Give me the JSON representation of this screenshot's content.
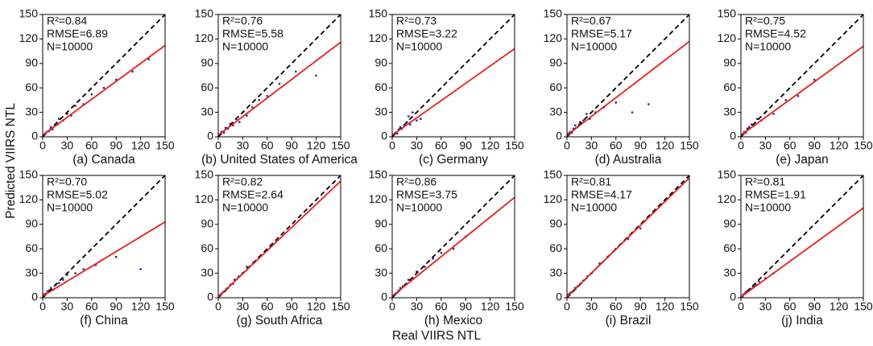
{
  "ylabel": "Predicted VIIRS NTL",
  "xlabel": "Real VIIRS NTL",
  "chart_data": [
    {
      "type": "scatter",
      "title": "(a) Canada",
      "annotations": [
        "R²=0.84",
        "RMSE=6.89",
        "N=10000"
      ],
      "xlim": [
        0,
        150
      ],
      "ylim": [
        0,
        150
      ],
      "xticks": [
        0,
        30,
        60,
        90,
        120,
        150
      ],
      "yticks": [
        0,
        30,
        60,
        90,
        120,
        150
      ],
      "series": [
        {
          "type": "scatter",
          "color": "#3a3a96",
          "x": [
            3,
            5,
            8,
            10,
            12,
            15,
            18,
            20,
            25,
            30,
            35,
            40,
            50,
            60,
            75,
            90,
            110,
            130
          ],
          "values": [
            4,
            6,
            7,
            12,
            9,
            14,
            15,
            22,
            20,
            28,
            26,
            38,
            40,
            52,
            60,
            70,
            80,
            95
          ]
        },
        {
          "type": "line",
          "color": "#000000",
          "dashed": true,
          "x": [
            0,
            150
          ],
          "values": [
            0,
            150
          ]
        },
        {
          "type": "line",
          "color": "#e8201c",
          "x": [
            0,
            150
          ],
          "values": [
            2,
            112
          ]
        }
      ]
    },
    {
      "type": "scatter",
      "title": "(b) United States of America",
      "annotations": [
        "R²=0.76",
        "RMSE=5.58",
        "N=10000"
      ],
      "xlim": [
        0,
        150
      ],
      "ylim": [
        0,
        150
      ],
      "xticks": [
        0,
        30,
        60,
        90,
        120,
        150
      ],
      "yticks": [
        0,
        30,
        60,
        90,
        120,
        150
      ],
      "series": [
        {
          "type": "scatter",
          "color": "#3a3a96",
          "x": [
            2,
            4,
            7,
            9,
            12,
            15,
            18,
            22,
            26,
            30,
            35,
            42,
            50,
            60,
            75,
            95,
            120
          ],
          "values": [
            3,
            6,
            5,
            11,
            10,
            16,
            14,
            22,
            18,
            30,
            26,
            36,
            45,
            50,
            65,
            80,
            75
          ]
        },
        {
          "type": "line",
          "color": "#000000",
          "dashed": true,
          "x": [
            0,
            150
          ],
          "values": [
            0,
            150
          ]
        },
        {
          "type": "line",
          "color": "#e8201c",
          "x": [
            0,
            150
          ],
          "values": [
            2,
            116
          ]
        }
      ]
    },
    {
      "type": "scatter",
      "title": "(c) Germany",
      "annotations": [
        "R²=0.73",
        "RMSE=3.22",
        "N=10000"
      ],
      "xlim": [
        0,
        150
      ],
      "ylim": [
        0,
        150
      ],
      "xticks": [
        0,
        30,
        60,
        90,
        120,
        150
      ],
      "yticks": [
        0,
        30,
        60,
        90,
        120,
        150
      ],
      "series": [
        {
          "type": "scatter",
          "color": "#3a3a96",
          "x": [
            2,
            4,
            6,
            8,
            10,
            12,
            15,
            18,
            20,
            22,
            25,
            30,
            35
          ],
          "values": [
            3,
            5,
            4,
            9,
            12,
            10,
            14,
            18,
            25,
            15,
            30,
            20,
            22
          ]
        },
        {
          "type": "line",
          "color": "#000000",
          "dashed": true,
          "x": [
            0,
            150
          ],
          "values": [
            0,
            150
          ]
        },
        {
          "type": "line",
          "color": "#e8201c",
          "x": [
            0,
            150
          ],
          "values": [
            2,
            108
          ]
        }
      ]
    },
    {
      "type": "scatter",
      "title": "(d) Australia",
      "annotations": [
        "R²=0.67",
        "RMSE=5.17",
        "N=10000"
      ],
      "xlim": [
        0,
        150
      ],
      "ylim": [
        0,
        150
      ],
      "xticks": [
        0,
        30,
        60,
        90,
        120,
        150
      ],
      "yticks": [
        0,
        30,
        60,
        90,
        120,
        150
      ],
      "series": [
        {
          "type": "scatter",
          "color": "#3a3a96",
          "x": [
            2,
            4,
            6,
            8,
            10,
            13,
            16,
            20,
            24,
            28,
            35,
            45,
            60,
            80,
            100
          ],
          "values": [
            4,
            6,
            5,
            10,
            14,
            12,
            18,
            20,
            28,
            22,
            30,
            36,
            42,
            30,
            40
          ]
        },
        {
          "type": "line",
          "color": "#000000",
          "dashed": true,
          "x": [
            0,
            150
          ],
          "values": [
            0,
            150
          ]
        },
        {
          "type": "line",
          "color": "#e8201c",
          "x": [
            0,
            150
          ],
          "values": [
            2,
            117
          ]
        }
      ]
    },
    {
      "type": "scatter",
      "title": "(e) Japan",
      "annotations": [
        "R²=0.75",
        "RMSE=4.52",
        "N=10000"
      ],
      "xlim": [
        0,
        150
      ],
      "ylim": [
        0,
        150
      ],
      "xticks": [
        0,
        30,
        60,
        90,
        120,
        150
      ],
      "yticks": [
        0,
        30,
        60,
        90,
        120,
        150
      ],
      "series": [
        {
          "type": "scatter",
          "color": "#3a3a96",
          "x": [
            2,
            4,
            6,
            8,
            10,
            13,
            16,
            20,
            25,
            30,
            40,
            55,
            70,
            90
          ],
          "values": [
            3,
            6,
            5,
            10,
            12,
            15,
            14,
            22,
            20,
            30,
            28,
            45,
            50,
            70
          ]
        },
        {
          "type": "line",
          "color": "#000000",
          "dashed": true,
          "x": [
            0,
            150
          ],
          "values": [
            0,
            150
          ]
        },
        {
          "type": "line",
          "color": "#e8201c",
          "x": [
            0,
            150
          ],
          "values": [
            2,
            111
          ]
        }
      ]
    },
    {
      "type": "scatter",
      "title": "(f) China",
      "annotations": [
        "R²=0.70",
        "RMSE=5.02",
        "N=10000"
      ],
      "xlim": [
        0,
        150
      ],
      "ylim": [
        0,
        150
      ],
      "xticks": [
        0,
        30,
        60,
        90,
        120,
        150
      ],
      "yticks": [
        0,
        30,
        60,
        90,
        120,
        150
      ],
      "series": [
        {
          "type": "scatter",
          "color": "#3a3a96",
          "x": [
            2,
            4,
            6,
            8,
            10,
            13,
            16,
            20,
            25,
            30,
            40,
            50,
            65,
            90,
            120
          ],
          "values": [
            4,
            5,
            8,
            9,
            12,
            10,
            16,
            18,
            22,
            28,
            30,
            35,
            40,
            50,
            35
          ]
        },
        {
          "type": "line",
          "color": "#000000",
          "dashed": true,
          "x": [
            0,
            150
          ],
          "values": [
            0,
            150
          ]
        },
        {
          "type": "line",
          "color": "#e8201c",
          "x": [
            0,
            150
          ],
          "values": [
            2,
            93
          ]
        }
      ]
    },
    {
      "type": "scatter",
      "title": "(g) South Africa",
      "annotations": [
        "R²=0.82",
        "RMSE=2.64",
        "N=10000"
      ],
      "xlim": [
        0,
        150
      ],
      "ylim": [
        0,
        150
      ],
      "xticks": [
        0,
        30,
        60,
        90,
        120,
        150
      ],
      "yticks": [
        0,
        30,
        60,
        90,
        120,
        150
      ],
      "series": [
        {
          "type": "scatter",
          "color": "#3a3a96",
          "x": [
            2,
            4,
            6,
            8,
            10,
            12,
            15,
            18,
            20,
            25,
            30,
            35,
            45
          ],
          "values": [
            3,
            5,
            7,
            8,
            11,
            12,
            16,
            17,
            22,
            26,
            30,
            38,
            44
          ]
        },
        {
          "type": "line",
          "color": "#000000",
          "dashed": true,
          "x": [
            0,
            150
          ],
          "values": [
            0,
            150
          ]
        },
        {
          "type": "line",
          "color": "#e8201c",
          "x": [
            0,
            150
          ],
          "values": [
            1,
            143
          ]
        }
      ]
    },
    {
      "type": "scatter",
      "title": "(h) Mexico",
      "annotations": [
        "R²=0.86",
        "RMSE=3.75",
        "N=10000"
      ],
      "xlim": [
        0,
        150
      ],
      "ylim": [
        0,
        150
      ],
      "xticks": [
        0,
        30,
        60,
        90,
        120,
        150
      ],
      "yticks": [
        0,
        30,
        60,
        90,
        120,
        150
      ],
      "series": [
        {
          "type": "scatter",
          "color": "#3a3a96",
          "x": [
            2,
            4,
            6,
            8,
            10,
            13,
            16,
            20,
            25,
            30,
            40,
            50,
            60,
            75,
            90
          ],
          "values": [
            3,
            5,
            6,
            9,
            12,
            14,
            16,
            22,
            24,
            32,
            38,
            48,
            55,
            60,
            75
          ]
        },
        {
          "type": "line",
          "color": "#000000",
          "dashed": true,
          "x": [
            0,
            150
          ],
          "values": [
            0,
            150
          ]
        },
        {
          "type": "line",
          "color": "#e8201c",
          "x": [
            0,
            150
          ],
          "values": [
            2,
            123
          ]
        }
      ]
    },
    {
      "type": "scatter",
      "title": "(i) Brazil",
      "annotations": [
        "R²=0.81",
        "RMSE=4.17",
        "N=10000"
      ],
      "xlim": [
        0,
        150
      ],
      "ylim": [
        0,
        150
      ],
      "xticks": [
        0,
        30,
        60,
        90,
        120,
        150
      ],
      "yticks": [
        0,
        30,
        60,
        90,
        120,
        150
      ],
      "series": [
        {
          "type": "scatter",
          "color": "#3a3a96",
          "x": [
            2,
            4,
            6,
            8,
            10,
            13,
            16,
            20,
            25,
            30,
            40,
            50,
            60,
            75,
            90
          ],
          "values": [
            4,
            6,
            7,
            9,
            12,
            14,
            17,
            21,
            26,
            30,
            42,
            50,
            60,
            72,
            85
          ]
        },
        {
          "type": "line",
          "color": "#000000",
          "dashed": true,
          "x": [
            0,
            150
          ],
          "values": [
            0,
            150
          ]
        },
        {
          "type": "line",
          "color": "#e8201c",
          "x": [
            0,
            150
          ],
          "values": [
            1,
            147
          ]
        }
      ]
    },
    {
      "type": "scatter",
      "title": "(j) India",
      "annotations": [
        "R²=0.81",
        "RMSE=1.91",
        "N=10000"
      ],
      "xlim": [
        0,
        150
      ],
      "ylim": [
        0,
        150
      ],
      "xticks": [
        0,
        30,
        60,
        90,
        120,
        150
      ],
      "yticks": [
        0,
        30,
        60,
        90,
        120,
        150
      ],
      "series": [
        {
          "type": "scatter",
          "color": "#3a3a96",
          "x": [
            2,
            3,
            5,
            6,
            8,
            10,
            12,
            15,
            18,
            22,
            30,
            40
          ],
          "values": [
            2,
            4,
            5,
            7,
            8,
            10,
            11,
            14,
            16,
            20,
            24,
            30
          ]
        },
        {
          "type": "line",
          "color": "#000000",
          "dashed": true,
          "x": [
            0,
            150
          ],
          "values": [
            0,
            150
          ]
        },
        {
          "type": "line",
          "color": "#e8201c",
          "x": [
            0,
            150
          ],
          "values": [
            1,
            110
          ]
        }
      ]
    }
  ]
}
